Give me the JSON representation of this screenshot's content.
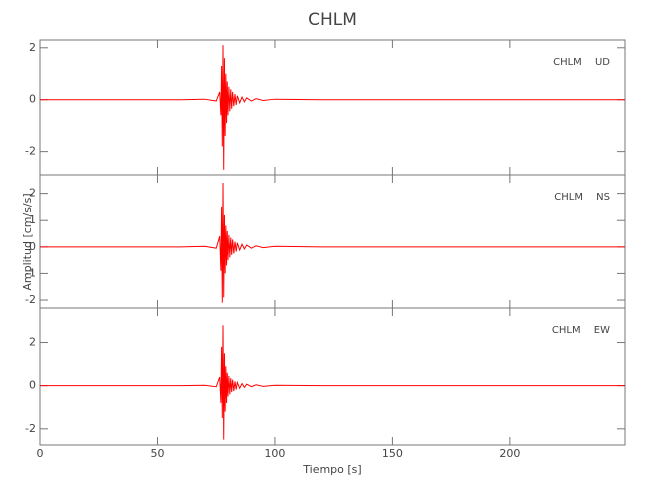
{
  "chart_data": [
    {
      "type": "line",
      "title": "CHLM",
      "label": "CHLM UD",
      "color": "#ff0000",
      "x": [
        0,
        20,
        40,
        60,
        70,
        75,
        76.5,
        77,
        77.3,
        77.6,
        77.9,
        78.2,
        78.5,
        78.8,
        79.1,
        79.4,
        79.7,
        80,
        80.4,
        80.8,
        81.2,
        81.6,
        82,
        82.5,
        83,
        83.5,
        84,
        85,
        86,
        87,
        88,
        90,
        92,
        95,
        100,
        120,
        150,
        180,
        210,
        249
      ],
      "values": [
        0,
        0,
        0,
        0,
        0.02,
        -0.05,
        0.3,
        -0.6,
        1.3,
        -1.8,
        2.1,
        -2.7,
        1.6,
        -1.4,
        1.0,
        -0.9,
        0.7,
        -0.6,
        0.5,
        -0.45,
        0.4,
        -0.35,
        0.3,
        -0.25,
        0.22,
        -0.2,
        0.15,
        -0.12,
        0.1,
        -0.08,
        0.07,
        -0.05,
        0.04,
        -0.03,
        0.02,
        0,
        0,
        0,
        0,
        0
      ],
      "xlim": [
        0,
        249
      ],
      "ylim": [
        -2.9,
        2.3
      ],
      "yticks": [
        -2,
        0,
        2
      ]
    },
    {
      "type": "line",
      "label": "CHLM NS",
      "y_label": "Amplitud [cm/s/s]",
      "color": "#ff0000",
      "x": [
        0,
        20,
        40,
        60,
        70,
        75,
        76.5,
        77,
        77.3,
        77.6,
        77.9,
        78.2,
        78.5,
        78.8,
        79.1,
        79.4,
        79.7,
        80,
        80.4,
        80.8,
        81.2,
        81.6,
        82,
        82.5,
        83,
        83.5,
        84,
        85,
        86,
        87,
        88,
        90,
        92,
        95,
        100,
        120,
        150,
        180,
        210,
        249
      ],
      "values": [
        0,
        0,
        0,
        0,
        0.02,
        -0.05,
        0.4,
        -0.9,
        1.5,
        -2.1,
        2.4,
        -1.9,
        1.2,
        -1.0,
        0.8,
        -0.7,
        0.6,
        -0.5,
        0.45,
        -0.4,
        0.35,
        -0.3,
        0.28,
        -0.25,
        0.2,
        -0.18,
        0.15,
        -0.12,
        0.1,
        -0.08,
        0.07,
        -0.05,
        0.04,
        -0.03,
        0.02,
        0,
        0,
        0,
        0,
        0
      ],
      "xlim": [
        0,
        249
      ],
      "ylim": [
        -2.3,
        2.7
      ],
      "yticks": [
        -2,
        -1,
        0,
        1,
        2
      ]
    },
    {
      "type": "line",
      "label": "CHLM EW",
      "x_label": "Tiempo [s]",
      "color": "#ff0000",
      "x": [
        0,
        20,
        40,
        60,
        70,
        75,
        76.5,
        77,
        77.3,
        77.6,
        77.9,
        78.2,
        78.5,
        78.8,
        79.1,
        79.4,
        79.7,
        80,
        80.4,
        80.8,
        81.2,
        81.6,
        82,
        82.5,
        83,
        83.5,
        84,
        85,
        86,
        87,
        88,
        90,
        92,
        95,
        100,
        120,
        150,
        180,
        210,
        249
      ],
      "values": [
        0,
        0,
        0,
        0,
        0.02,
        -0.05,
        0.4,
        -0.8,
        1.8,
        -1.5,
        2.8,
        -2.5,
        1.5,
        -1.2,
        0.9,
        -0.8,
        0.6,
        -0.5,
        0.45,
        -0.4,
        0.35,
        -0.3,
        0.28,
        -0.25,
        0.2,
        -0.18,
        0.15,
        -0.12,
        0.1,
        -0.08,
        0.07,
        -0.05,
        0.04,
        -0.03,
        0.02,
        0,
        0,
        0,
        0,
        0
      ],
      "xlim": [
        0,
        249
      ],
      "ylim": [
        -2.75,
        3.6
      ],
      "yticks": [
        -2,
        0,
        2
      ],
      "xticks": [
        0,
        50,
        100,
        150,
        200
      ]
    }
  ]
}
